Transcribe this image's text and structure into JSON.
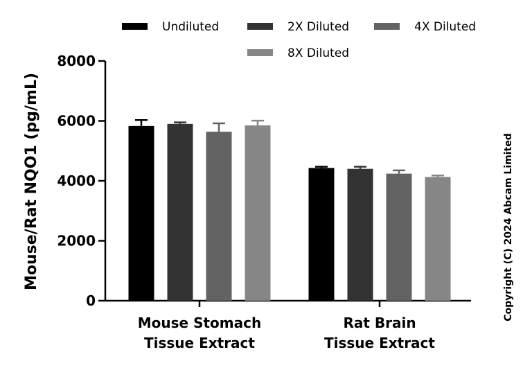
{
  "chart_data": {
    "type": "bar",
    "title": "",
    "xlabel": "",
    "ylabel": "Mouse/Rat NQO1 (pg/mL)",
    "ylim": [
      0,
      8000
    ],
    "yticks": [
      0,
      2000,
      4000,
      6000,
      8000
    ],
    "categories": [
      [
        "Mouse Stomach",
        "Tissue Extract"
      ],
      [
        "Rat Brain",
        "Tissue Extract"
      ]
    ],
    "series": [
      {
        "name": "Undiluted",
        "color": "#000000",
        "values": [
          5830,
          4430
        ],
        "errors": [
          200,
          40
        ]
      },
      {
        "name": "2X Diluted",
        "color": "#333333",
        "values": [
          5900,
          4400
        ],
        "errors": [
          50,
          70
        ]
      },
      {
        "name": "4X Diluted",
        "color": "#636363",
        "values": [
          5640,
          4240
        ],
        "errors": [
          280,
          110
        ]
      },
      {
        "name": "8X Diluted",
        "color": "#868686",
        "values": [
          5850,
          4130
        ],
        "errors": [
          160,
          50
        ]
      }
    ],
    "legend_position": "top"
  },
  "copyright": "Copyright (C) 2024 Abcam Limited"
}
